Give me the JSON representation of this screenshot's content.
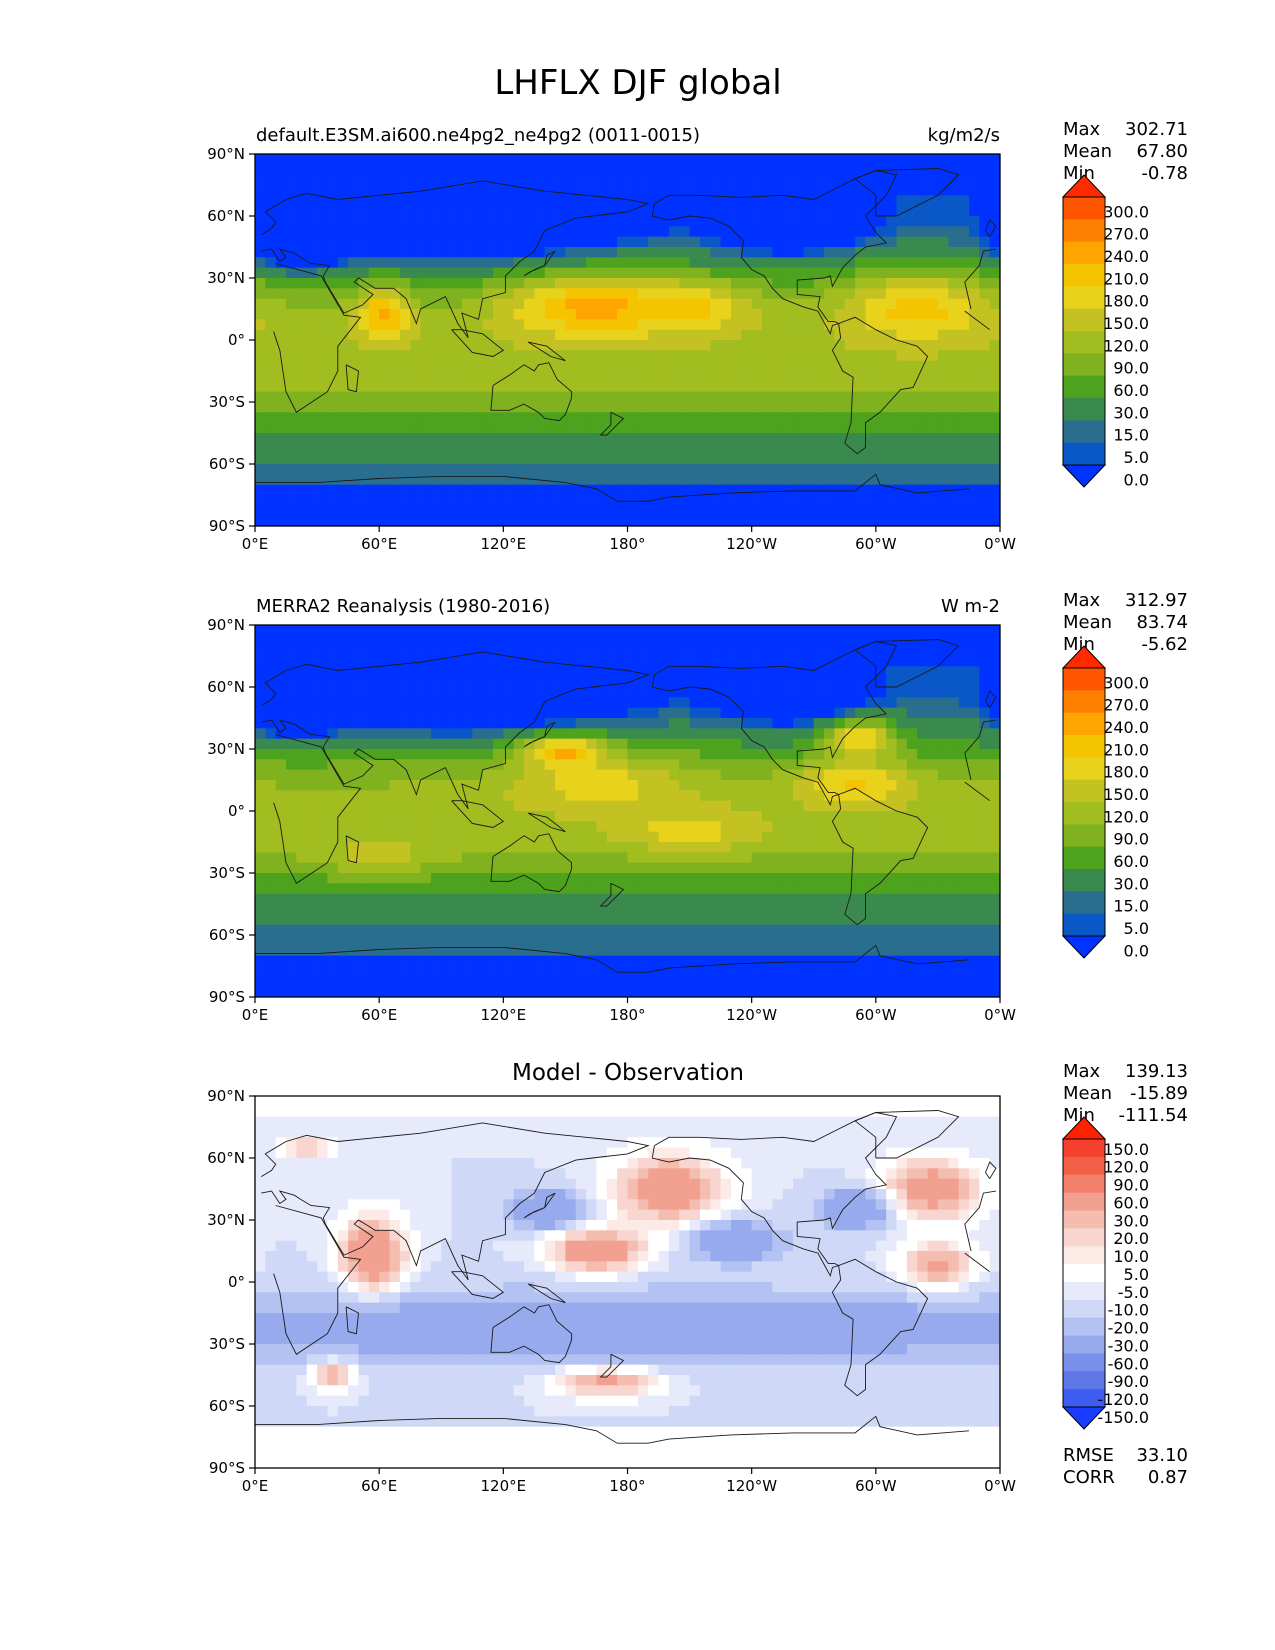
{
  "chart_data": {
    "type": "heatmap",
    "title": "LHFLX DJF global",
    "x_ticks": [
      "0°E",
      "60°E",
      "120°E",
      "180°",
      "120°W",
      "60°W",
      "0°W"
    ],
    "y_ticks": [
      "90°N",
      "60°N",
      "30°N",
      "0°",
      "30°S",
      "60°S",
      "90°S"
    ],
    "xlim": [
      0,
      360
    ],
    "ylim": [
      -90,
      90
    ],
    "panels": [
      {
        "id": "model",
        "title_left": "default.E3SM.ai600.ne4pg2_ne4pg2 (0011-0015)",
        "title_right": "kg/m2/s",
        "title_center": "",
        "stats": {
          "max_label": "Max",
          "max": "302.71",
          "mean_label": "Mean",
          "mean": "67.80",
          "min_label": "Min",
          "min": "-0.78"
        },
        "colorbar_levels": [
          "300.0",
          "270.0",
          "240.0",
          "210.0",
          "180.0",
          "150.0",
          "120.0",
          "90.0",
          "60.0",
          "30.0",
          "15.0",
          "5.0",
          "0.0"
        ],
        "colors": [
          "#ff2a00",
          "#ff5500",
          "#ff8000",
          "#ffa500",
          "#f5c400",
          "#e8d21c",
          "#c4c222",
          "#a2bd1f",
          "#7fb21e",
          "#4da31e",
          "#3a8a4f",
          "#2a6e8f",
          "#0a58c8",
          "#0033ff"
        ],
        "value_range": [
          -5,
          305
        ]
      },
      {
        "id": "obs",
        "title_left": "MERRA2 Reanalysis (1980-2016)",
        "title_right": "W m-2",
        "title_center": "",
        "stats": {
          "max_label": "Max",
          "max": "312.97",
          "mean_label": "Mean",
          "mean": "83.74",
          "min_label": "Min",
          "min": "-5.62"
        },
        "colorbar_levels": [
          "300.0",
          "270.0",
          "240.0",
          "210.0",
          "180.0",
          "150.0",
          "120.0",
          "90.0",
          "60.0",
          "30.0",
          "15.0",
          "5.0",
          "0.0"
        ],
        "colors": [
          "#ff2a00",
          "#ff5500",
          "#ff8000",
          "#ffa500",
          "#f5c400",
          "#e8d21c",
          "#c4c222",
          "#a2bd1f",
          "#7fb21e",
          "#4da31e",
          "#3a8a4f",
          "#2a6e8f",
          "#0a58c8",
          "#0033ff"
        ],
        "value_range": [
          -5,
          315
        ]
      },
      {
        "id": "diff",
        "title_left": "",
        "title_right": "",
        "title_center": "Model - Observation",
        "stats": {
          "max_label": "Max",
          "max": "139.13",
          "mean_label": "Mean",
          "mean": "-15.89",
          "min_label": "Min",
          "min": "-111.54"
        },
        "colorbar_levels": [
          "150.0",
          "120.0",
          "90.0",
          "60.0",
          "30.0",
          "20.0",
          "10.0",
          "5.0",
          "-5.0",
          "-10.0",
          "-20.0",
          "-30.0",
          "-60.0",
          "-90.0",
          "-120.0",
          "-150.0"
        ],
        "colors": [
          "#ff2200",
          "#f5402e",
          "#f26048",
          "#f2806a",
          "#f2a090",
          "#f5bcb0",
          "#f8d6cf",
          "#fbeae6",
          "#ffffff",
          "#e6eafb",
          "#cfd8f7",
          "#b3c2f2",
          "#97aaee",
          "#7b90ea",
          "#5f76e6",
          "#3d5cf0",
          "#1a3cff"
        ],
        "value_range": [
          -150,
          150
        ],
        "extra_stats": {
          "rmse_label": "RMSE",
          "rmse": "33.10",
          "corr_label": "CORR",
          "corr": "0.87"
        }
      }
    ]
  }
}
